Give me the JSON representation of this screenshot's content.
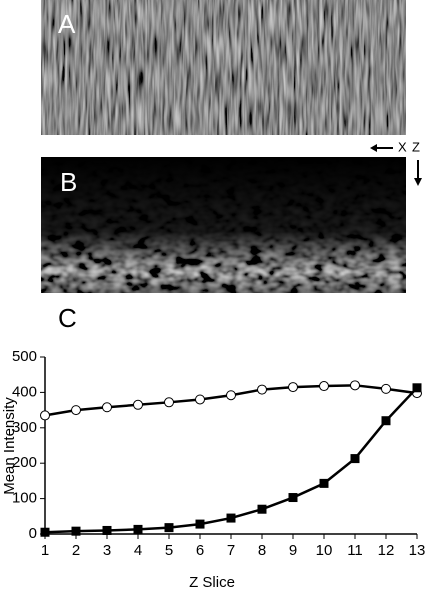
{
  "panels": [
    {
      "label": "A"
    },
    {
      "label": "B"
    }
  ],
  "axis_indicator": {
    "x": "X",
    "z": "Z"
  },
  "chart_data": {
    "type": "line",
    "panel_label": "C",
    "x_label": "Z Slice",
    "y_label": "Mean Intensity",
    "x": [
      1,
      2,
      3,
      4,
      5,
      6,
      7,
      8,
      9,
      10,
      11,
      12,
      13
    ],
    "xlim": [
      1,
      13
    ],
    "xticks": [
      1,
      2,
      3,
      4,
      5,
      6,
      7,
      8,
      9,
      10,
      11,
      12,
      13
    ],
    "ylim": [
      0,
      500
    ],
    "yticks": [
      0,
      100,
      200,
      300,
      400,
      500
    ],
    "series": [
      {
        "marker": "circle",
        "color": "#000000",
        "fill": "#ffffff",
        "values": [
          335,
          350,
          358,
          365,
          372,
          380,
          392,
          408,
          415,
          418,
          420,
          410,
          398
        ]
      },
      {
        "marker": "square",
        "color": "#000000",
        "fill": "#000000",
        "values": [
          5,
          8,
          10,
          13,
          18,
          28,
          45,
          70,
          103,
          143,
          213,
          320,
          413
        ]
      }
    ]
  }
}
